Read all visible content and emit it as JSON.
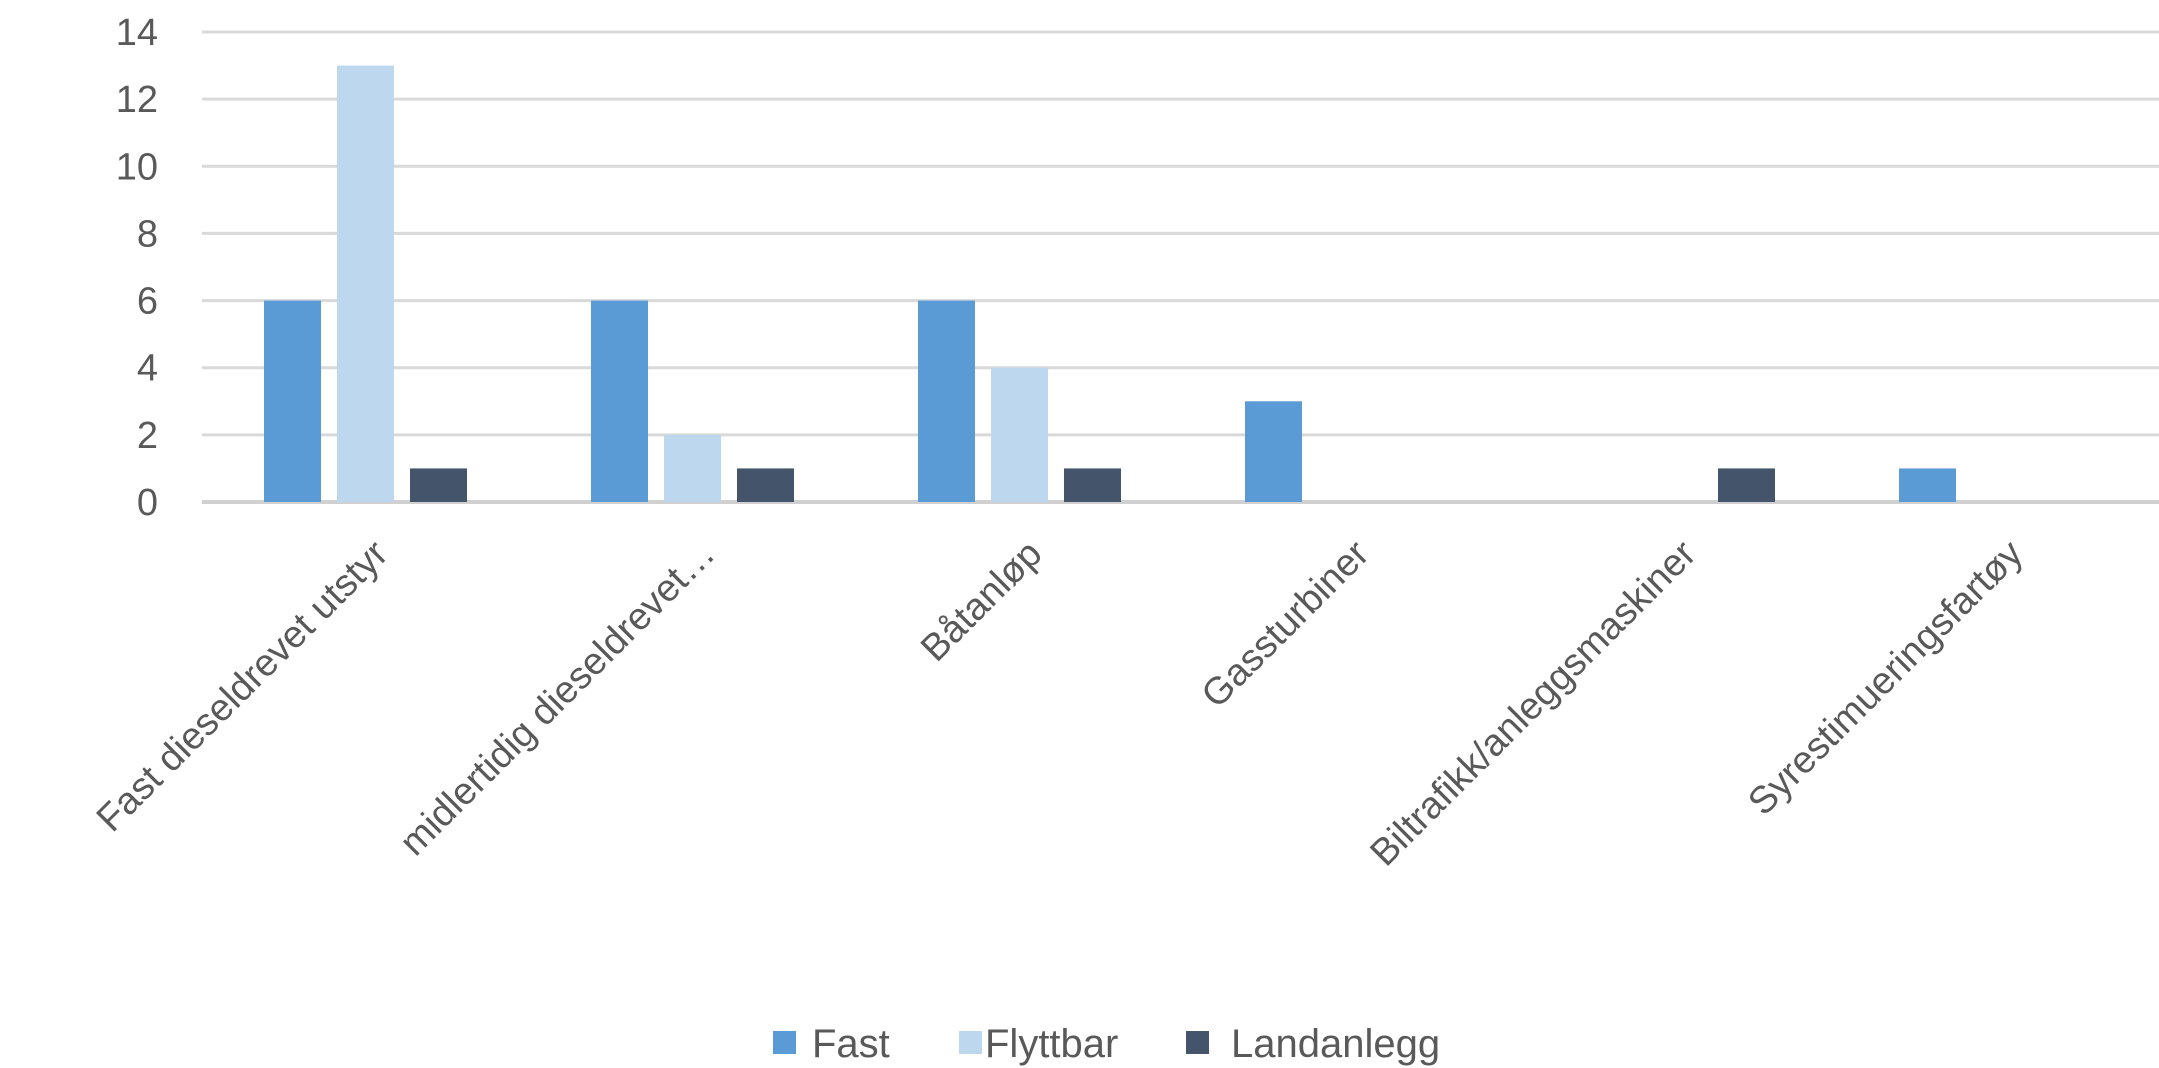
{
  "chart_data": {
    "type": "bar",
    "categories": [
      "Fast dieseldrevet utstyr",
      "midlertidig dieseldrevet…",
      "Båtanløp",
      "Gassturbiner",
      "Biltrafikk/anleggsmaskiner",
      "Syrestimueringsfartøy"
    ],
    "series": [
      {
        "name": "Fast",
        "color": "#5b9bd5",
        "values": [
          6,
          6,
          6,
          3,
          0,
          1
        ]
      },
      {
        "name": "Flyttbar",
        "color": "#bdd7ee",
        "values": [
          13,
          2,
          4,
          0,
          0,
          0
        ]
      },
      {
        "name": "Landanlegg",
        "color": "#44546a",
        "values": [
          1,
          1,
          1,
          0,
          1,
          0
        ]
      }
    ],
    "yticks": [
      "0",
      "2",
      "4",
      "6",
      "8",
      "10",
      "12",
      "14"
    ],
    "ylim": [
      0,
      14
    ],
    "grid": true,
    "legend_position": "bottom",
    "title": "",
    "xlabel": "",
    "ylabel": ""
  }
}
